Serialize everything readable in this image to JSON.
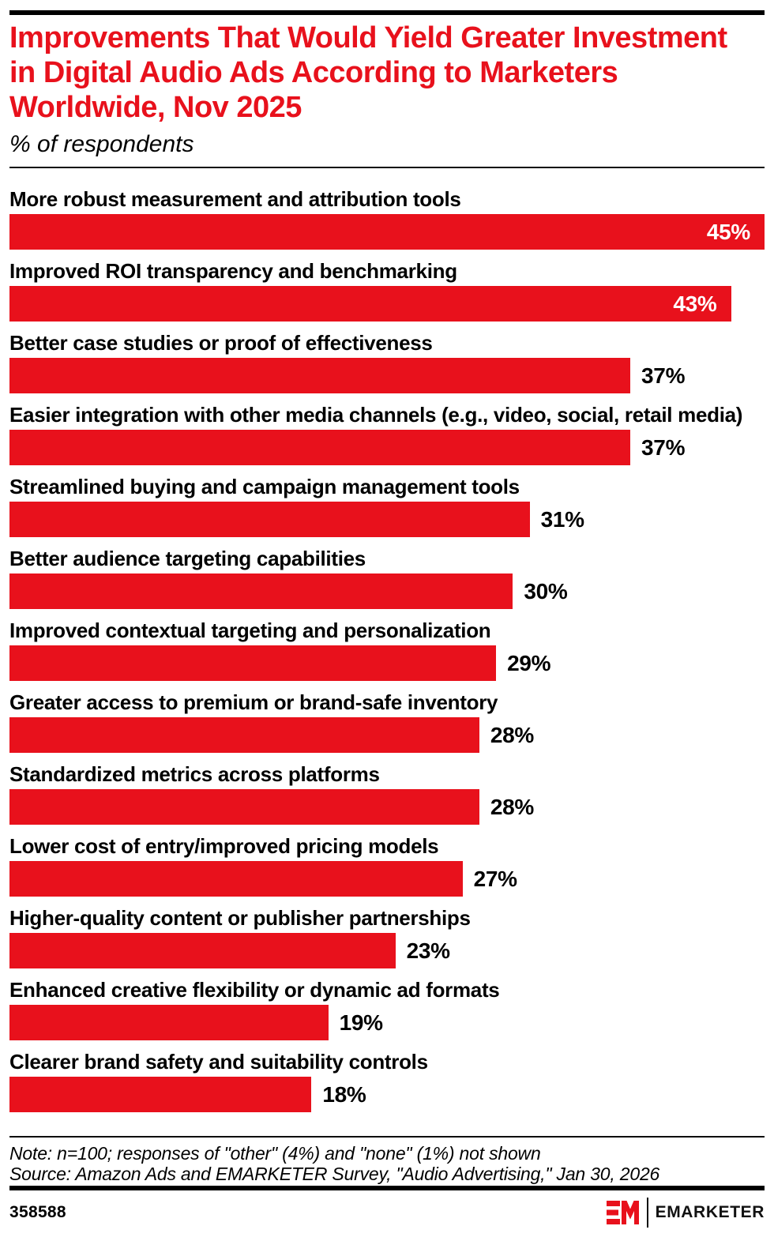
{
  "header": {
    "title": "Improvements That Would Yield Greater Investment in Digital Audio Ads According to Marketers Worldwide, Nov 2025",
    "subtitle": "% of respondents"
  },
  "chart_data": {
    "type": "bar",
    "orientation": "horizontal",
    "title": "Improvements That Would Yield Greater Investment in Digital Audio Ads According to Marketers Worldwide, Nov 2025",
    "subtitle": "% of respondents",
    "unit": "%",
    "axis_max": 45,
    "grid": false,
    "legend": false,
    "bar_color": "#E8111C",
    "inside_label_min": 43,
    "categories": [
      "More robust measurement and attribution tools",
      "Improved ROI transparency and benchmarking",
      "Better case studies or proof of effectiveness",
      "Easier integration with other media channels (e.g., video, social, retail media)",
      "Streamlined buying and campaign management tools",
      "Better audience targeting capabilities",
      "Improved contextual targeting and personalization",
      "Greater access to premium or brand-safe inventory",
      "Standardized metrics across platforms",
      "Lower cost of entry/improved pricing models",
      "Higher-quality content or publisher partnerships",
      "Enhanced creative flexibility or dynamic ad formats",
      "Clearer brand safety and suitability controls"
    ],
    "values": [
      45,
      43,
      37,
      37,
      31,
      30,
      29,
      28,
      28,
      27,
      23,
      19,
      18
    ]
  },
  "footnotes": {
    "note": "Note: n=100; responses of \"other\" (4%) and \"none\" (1%) not shown",
    "source": "Source: Amazon Ads and EMARKETER Survey, \"Audio Advertising,\" Jan 30, 2026"
  },
  "footer": {
    "chart_id": "358588",
    "brand": "EMARKETER"
  }
}
